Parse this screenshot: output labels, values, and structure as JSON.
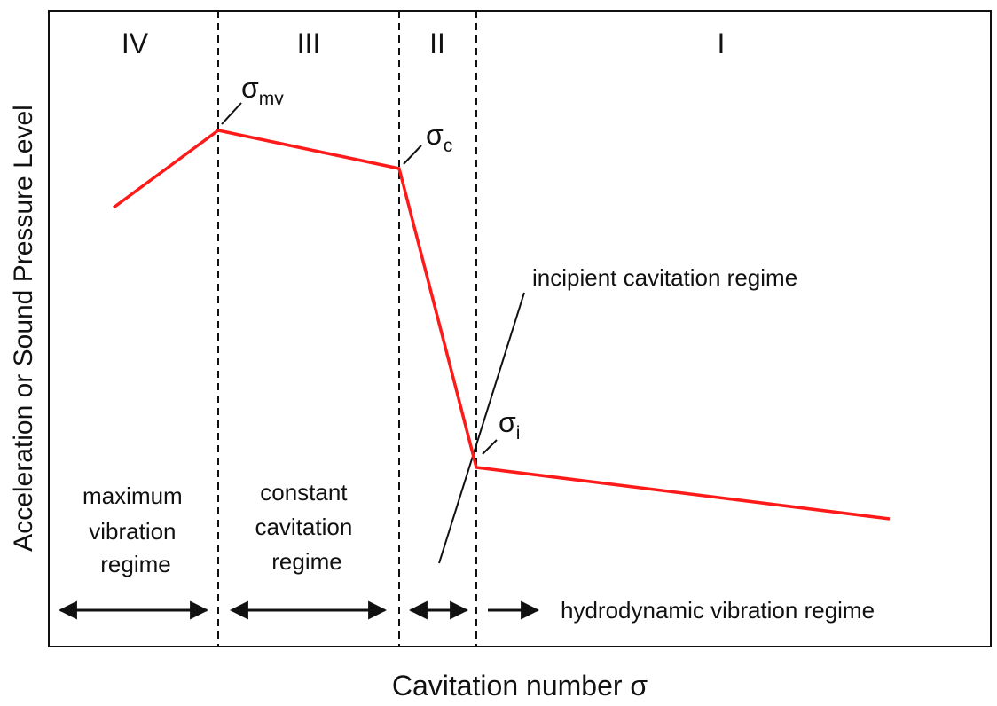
{
  "diagram": {
    "y_axis_label": "Acceleration or Sound Pressure Level",
    "x_axis_label": "Cavitation number σ",
    "regions": [
      {
        "numeral": "IV"
      },
      {
        "numeral": "III"
      },
      {
        "numeral": "II"
      },
      {
        "numeral": "I"
      }
    ],
    "sigma_points": {
      "mv": {
        "symbol": "σ",
        "subscript": "mv"
      },
      "c": {
        "symbol": "σ",
        "subscript": "c"
      },
      "i": {
        "symbol": "σ",
        "subscript": "i"
      }
    },
    "regime_labels": {
      "max_vibration": [
        "maximum",
        "vibration",
        "regime"
      ],
      "constant_cavitation": [
        "constant",
        "cavitation",
        "regime"
      ],
      "incipient": "incipient cavitation regime",
      "hydrodynamic": "hydrodynamic vibration regime"
    },
    "colors": {
      "curve": "#ff1a1a",
      "lines": "#111111",
      "background": "#ffffff"
    }
  }
}
